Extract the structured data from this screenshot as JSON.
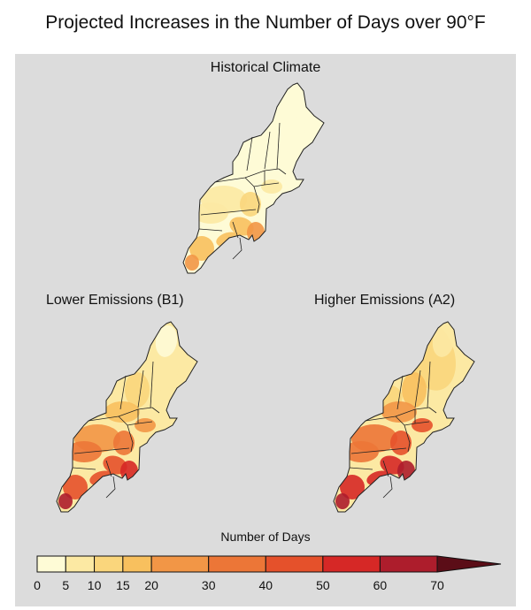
{
  "title": "Projected Increases in the Number of Days over 90°F",
  "maps": {
    "historical": {
      "label": "Historical Climate"
    },
    "lower": {
      "label": "Lower Emissions (B1)"
    },
    "higher": {
      "label": "Higher Emissions (A2)"
    }
  },
  "legend": {
    "title": "Number of Days",
    "ticks": [
      "0",
      "5",
      "10",
      "15",
      "20",
      "30",
      "40",
      "50",
      "60",
      "70"
    ],
    "colors": [
      "#fefbd6",
      "#fce9a3",
      "#fad67c",
      "#f8c05e",
      "#f29646",
      "#ec7637",
      "#e5512b",
      "#d62826",
      "#ad1d2c",
      "#7e1526",
      "#5b0d17"
    ]
  }
}
